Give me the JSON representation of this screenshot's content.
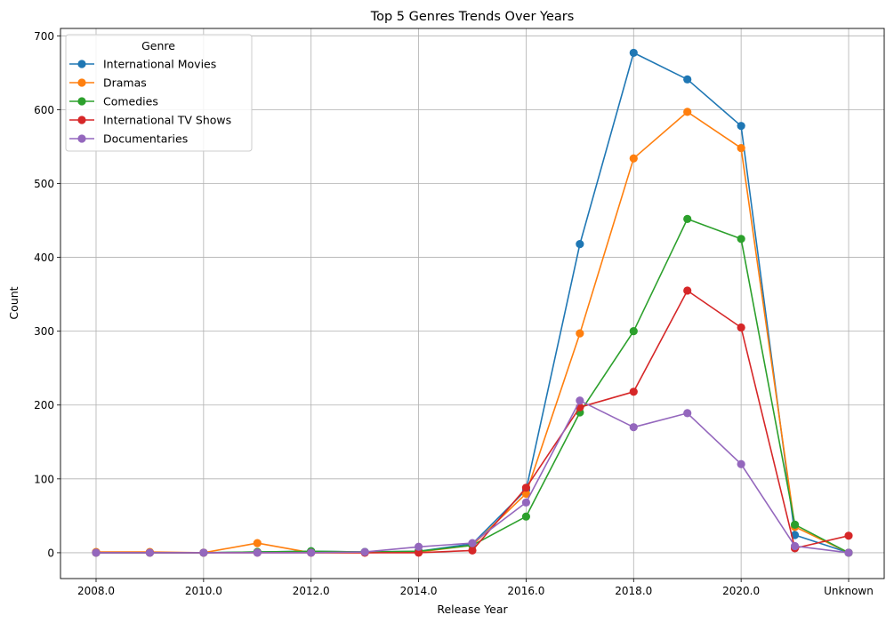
{
  "chart_data": {
    "type": "line",
    "title": "Top 5 Genres Trends Over Years",
    "xlabel": "Release Year",
    "ylabel": "Count",
    "x": [
      "2008.0",
      "2009.0",
      "2010.0",
      "2011.0",
      "2012.0",
      "2013.0",
      "2014.0",
      "2015.0",
      "2016.0",
      "2017.0",
      "2018.0",
      "2019.0",
      "2020.0",
      "2021.0",
      "Unknown"
    ],
    "x_tick_labels": [
      "2008.0",
      "2010.0",
      "2012.0",
      "2014.0",
      "2016.0",
      "2018.0",
      "2020.0",
      "Unknown"
    ],
    "y_ticks": [
      0,
      100,
      200,
      300,
      400,
      500,
      600,
      700
    ],
    "ylim": [
      -35,
      710
    ],
    "grid": true,
    "legend": {
      "title": "Genre",
      "placement": "top-left"
    },
    "series": [
      {
        "name": "International Movies",
        "color": "#1f77b4",
        "values": [
          0,
          0,
          0,
          1,
          2,
          1,
          2,
          12,
          85,
          418,
          677,
          641,
          578,
          24,
          0
        ]
      },
      {
        "name": "Dramas",
        "color": "#ff7f0e",
        "values": [
          1,
          1,
          0,
          13,
          0,
          0,
          1,
          10,
          80,
          297,
          534,
          597,
          548,
          35,
          0
        ]
      },
      {
        "name": "Comedies",
        "color": "#2ca02c",
        "values": [
          0,
          0,
          0,
          1,
          2,
          1,
          2,
          10,
          49,
          190,
          300,
          452,
          425,
          38,
          0
        ]
      },
      {
        "name": "International TV Shows",
        "color": "#d62728",
        "values": [
          0,
          0,
          0,
          0,
          0,
          0,
          0,
          3,
          88,
          197,
          218,
          355,
          305,
          6,
          23
        ]
      },
      {
        "name": "Documentaries",
        "color": "#9467bd",
        "values": [
          0,
          0,
          0,
          0,
          0,
          1,
          8,
          13,
          68,
          206,
          170,
          189,
          120,
          9,
          0
        ]
      }
    ]
  }
}
